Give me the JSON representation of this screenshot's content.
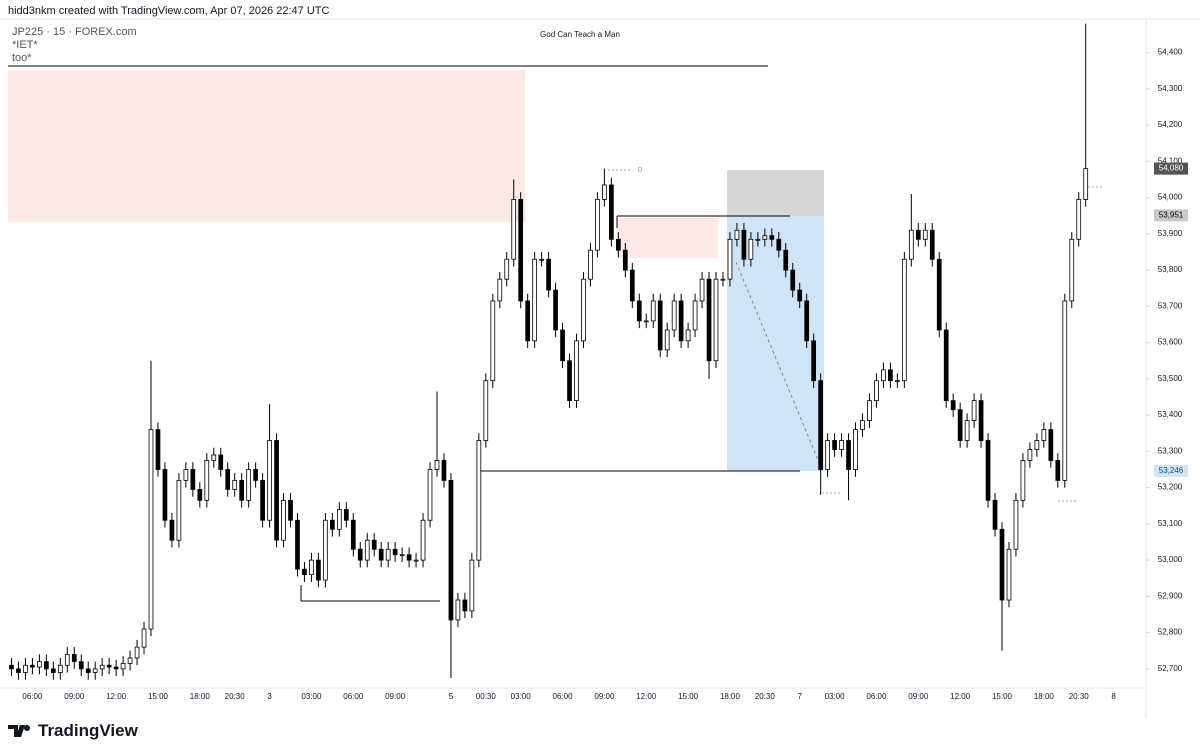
{
  "header": {
    "credit": "hidd3nkm created with TradingView.com, Apr 07, 2026 22:47 UTC",
    "symbol": "JP225 · 15 · FOREX.com",
    "note1": "*IET*",
    "note2": "too*"
  },
  "footer": {
    "brand": "TradingView"
  },
  "chart_data": {
    "type": "candlestick",
    "title": "God Can Teach a Man",
    "annotation": "D",
    "up_color": "#ffffff",
    "down_color": "#000000",
    "wick_color": "#000000",
    "categories": [
      null,
      null,
      null,
      "06:00",
      null,
      null,
      null,
      null,
      null,
      "09:00",
      null,
      null,
      null,
      null,
      null,
      "12:00",
      null,
      null,
      null,
      null,
      null,
      "15:00",
      null,
      null,
      null,
      null,
      null,
      "18:00",
      null,
      null,
      null,
      null,
      "20:30",
      null,
      null,
      null,
      null,
      "3",
      null,
      null,
      null,
      null,
      null,
      "03:00",
      null,
      null,
      null,
      null,
      null,
      "06:00",
      null,
      null,
      null,
      null,
      null,
      "09:00",
      null,
      null,
      null,
      null,
      null,
      null,
      null,
      "5",
      null,
      null,
      null,
      null,
      "00:30",
      null,
      null,
      null,
      null,
      "03:00",
      null,
      null,
      null,
      null,
      null,
      "06:00",
      null,
      null,
      null,
      null,
      null,
      "09:00",
      null,
      null,
      null,
      null,
      null,
      "12:00",
      null,
      null,
      null,
      null,
      null,
      "15:00",
      null,
      null,
      null,
      null,
      null,
      "18:00",
      null,
      null,
      null,
      null,
      "20:30",
      null,
      null,
      null,
      null,
      "7",
      null,
      null,
      null,
      null,
      "03:00",
      null,
      null,
      null,
      null,
      null,
      "06:00",
      null,
      null,
      null,
      null,
      null,
      "09:00",
      null,
      null,
      null,
      null,
      null,
      "12:00",
      null,
      null,
      null,
      null,
      null,
      "15:00",
      null,
      null,
      null,
      null,
      null,
      "18:00",
      null,
      null,
      null,
      null,
      "20:30",
      null,
      null,
      null,
      null,
      "8",
      null,
      null,
      null,
      null
    ],
    "open": [
      52710,
      52700,
      52690,
      52710,
      52705,
      52720,
      52700,
      52690,
      52710,
      52740,
      52720,
      52700,
      52690,
      52700,
      52710,
      52705,
      52700,
      52715,
      52730,
      52760,
      52810,
      53360,
      53250,
      53110,
      53055,
      53220,
      53250,
      53195,
      53165,
      53275,
      53290,
      53250,
      53195,
      53220,
      53165,
      53250,
      53220,
      53110,
      53330,
      53055,
      53165,
      53110,
      52975,
      52960,
      53000,
      52945,
      53110,
      53085,
      53140,
      53110,
      53030,
      53000,
      53055,
      53030,
      53000,
      53030,
      53015,
      53015,
      53000,
      53000,
      53110,
      53250,
      53275,
      53220,
      52835,
      52890,
      52860,
      53000,
      53330,
      53495,
      53715,
      53775,
      53830,
      53995,
      53715,
      53605,
      53830,
      53830,
      53745,
      53635,
      53550,
      53440,
      53605,
      53775,
      53855,
      53995,
      54035,
      53885,
      53855,
      53800,
      53715,
      53660,
      53660,
      53715,
      53580,
      53635,
      53715,
      53605,
      53635,
      53715,
      53775,
      53550,
      53775,
      53775,
      53885,
      53910,
      53830,
      53885,
      53885,
      53895,
      53885,
      53855,
      53800,
      53745,
      53715,
      53605,
      53495,
      53250,
      53330,
      53305,
      53330,
      53250,
      53360,
      53385,
      53440,
      53495,
      53525,
      53495,
      53495,
      53830,
      53910,
      53885,
      53910,
      53830,
      53635,
      53440,
      53415,
      53330,
      53385,
      53440,
      53330,
      53165,
      53085,
      52890,
      53030,
      53165,
      53275,
      53305,
      53330,
      53360,
      53275,
      53220,
      53715,
      53885,
      53995,
      null,
      null,
      null,
      null,
      null,
      null,
      null,
      null
    ],
    "high": [
      52730,
      52720,
      52730,
      52730,
      52740,
      52740,
      52720,
      52730,
      52760,
      52760,
      52740,
      52720,
      52720,
      52730,
      52730,
      52725,
      52735,
      52750,
      52780,
      52830,
      53550,
      53380,
      53270,
      53130,
      53240,
      53270,
      53270,
      53215,
      53295,
      53310,
      53310,
      53270,
      53240,
      53240,
      53270,
      53270,
      53240,
      53430,
      53350,
      53185,
      53185,
      53130,
      52995,
      53020,
      53020,
      53130,
      53130,
      53160,
      53160,
      53130,
      53050,
      53075,
      53075,
      53050,
      53050,
      53050,
      53035,
      53035,
      53020,
      53130,
      53270,
      53465,
      53295,
      53240,
      52910,
      52910,
      53020,
      53350,
      53515,
      53735,
      53795,
      53850,
      54050,
      54015,
      53735,
      53850,
      53850,
      53850,
      53765,
      53655,
      53570,
      53625,
      53795,
      53875,
      54015,
      54080,
      54055,
      53905,
      53875,
      53820,
      53735,
      53680,
      53735,
      53735,
      53655,
      53735,
      53735,
      53655,
      53735,
      53795,
      53795,
      53795,
      53795,
      53905,
      53930,
      53930,
      53905,
      53905,
      53915,
      53915,
      53905,
      53875,
      53820,
      53765,
      53735,
      53625,
      53515,
      53350,
      53350,
      53350,
      53350,
      53380,
      53405,
      53460,
      53515,
      53545,
      53545,
      53515,
      53850,
      54010,
      53930,
      53930,
      53930,
      53850,
      53655,
      53460,
      53435,
      53405,
      53460,
      53460,
      53350,
      53185,
      53105,
      53050,
      53185,
      53295,
      53325,
      53350,
      53380,
      53380,
      53295,
      53735,
      53905,
      54015,
      54480,
      null,
      null,
      null,
      null,
      null,
      null,
      null,
      null
    ],
    "low": [
      52680,
      52670,
      52670,
      52685,
      52685,
      52680,
      52670,
      52670,
      52690,
      52700,
      52680,
      52670,
      52670,
      52680,
      52685,
      52680,
      52680,
      52695,
      52710,
      52740,
      52790,
      53230,
      53090,
      53035,
      53035,
      53200,
      53175,
      53145,
      53145,
      53255,
      53230,
      53175,
      53175,
      53145,
      53145,
      53200,
      53090,
      53090,
      53035,
      53035,
      53090,
      52955,
      52940,
      52940,
      52925,
      52925,
      53065,
      53065,
      53090,
      53010,
      52980,
      52980,
      53010,
      52980,
      52980,
      52995,
      52995,
      52980,
      52980,
      52980,
      53090,
      53230,
      53200,
      52675,
      52815,
      52840,
      52840,
      52980,
      53310,
      53475,
      53695,
      53755,
      53810,
      53695,
      53585,
      53585,
      53810,
      53725,
      53615,
      53530,
      53420,
      53420,
      53585,
      53755,
      53835,
      53975,
      53865,
      53835,
      53780,
      53695,
      53640,
      53640,
      53640,
      53560,
      53560,
      53615,
      53585,
      53585,
      53615,
      53695,
      53500,
      53530,
      53755,
      53755,
      53865,
      53810,
      53810,
      53865,
      53865,
      53865,
      53835,
      53780,
      53725,
      53695,
      53585,
      53475,
      53180,
      53230,
      53285,
      53285,
      53165,
      53230,
      53340,
      53365,
      53420,
      53475,
      53475,
      53475,
      53475,
      53810,
      53865,
      53865,
      53810,
      53615,
      53420,
      53395,
      53310,
      53310,
      53365,
      53310,
      53145,
      53065,
      52750,
      52870,
      53010,
      53145,
      53255,
      53285,
      53310,
      53255,
      53200,
      53200,
      53695,
      53865,
      53975,
      null,
      null,
      null,
      null,
      null,
      null,
      null,
      null
    ],
    "close": [
      52700,
      52690,
      52710,
      52705,
      52720,
      52700,
      52690,
      52710,
      52740,
      52720,
      52700,
      52690,
      52700,
      52710,
      52705,
      52700,
      52715,
      52730,
      52760,
      52810,
      53360,
      53250,
      53110,
      53055,
      53220,
      53250,
      53195,
      53165,
      53275,
      53290,
      53250,
      53195,
      53220,
      53165,
      53250,
      53220,
      53110,
      53330,
      53055,
      53165,
      53110,
      52975,
      52960,
      53000,
      52945,
      53110,
      53085,
      53140,
      53110,
      53030,
      53000,
      53055,
      53030,
      53000,
      53030,
      53015,
      53015,
      53000,
      53000,
      53110,
      53250,
      53275,
      53220,
      52835,
      52890,
      52860,
      53000,
      53330,
      53495,
      53715,
      53775,
      53830,
      53995,
      53715,
      53605,
      53830,
      53830,
      53745,
      53635,
      53550,
      53440,
      53605,
      53775,
      53855,
      53995,
      54035,
      53885,
      53855,
      53800,
      53715,
      53660,
      53660,
      53715,
      53580,
      53635,
      53715,
      53605,
      53635,
      53715,
      53775,
      53550,
      53775,
      53775,
      53885,
      53910,
      53830,
      53885,
      53885,
      53895,
      53885,
      53855,
      53800,
      53745,
      53715,
      53605,
      53495,
      53250,
      53330,
      53305,
      53330,
      53250,
      53360,
      53385,
      53440,
      53495,
      53525,
      53495,
      53495,
      53830,
      53910,
      53885,
      53910,
      53830,
      53635,
      53440,
      53415,
      53330,
      53385,
      53440,
      53330,
      53165,
      53085,
      52890,
      53030,
      53165,
      53275,
      53305,
      53330,
      53360,
      53275,
      53220,
      53715,
      53885,
      53995,
      54080,
      null,
      null,
      null,
      null,
      null,
      null,
      null,
      null
    ],
    "ylim": [
      52650,
      54490
    ],
    "yticks": [
      {
        "value": 52700,
        "label": "52,700"
      },
      {
        "value": 52800,
        "label": "52,800"
      },
      {
        "value": 52900,
        "label": "52,900"
      },
      {
        "value": 53000,
        "label": "53,000"
      },
      {
        "value": 53100,
        "label": "53,100"
      },
      {
        "value": 53200,
        "label": "53,200"
      },
      {
        "value": 53300,
        "label": "53,300"
      },
      {
        "value": 53400,
        "label": "53,400"
      },
      {
        "value": 53500,
        "label": "53,500"
      },
      {
        "value": 53600,
        "label": "53,600"
      },
      {
        "value": 53700,
        "label": "53,700"
      },
      {
        "value": 53800,
        "label": "53,800"
      },
      {
        "value": 53900,
        "label": "53,900"
      },
      {
        "value": 54000,
        "label": "54,000"
      },
      {
        "value": 54100,
        "label": "54,100"
      },
      {
        "value": 54200,
        "label": "54,200"
      },
      {
        "value": 54300,
        "label": "54,300"
      },
      {
        "value": 54400,
        "label": "54,400"
      }
    ],
    "price_labels": [
      {
        "value": 54080,
        "label": "54,080",
        "color": "#555555",
        "text_color": "#ffffff"
      },
      {
        "value": 53951,
        "label": "53,951",
        "color": "#c8c8c8",
        "text_color": "#000000"
      },
      {
        "value": 53246,
        "label": "53,246",
        "color": "#cfe4f7",
        "text_color": "#1a4a7a"
      }
    ],
    "grid": false
  }
}
